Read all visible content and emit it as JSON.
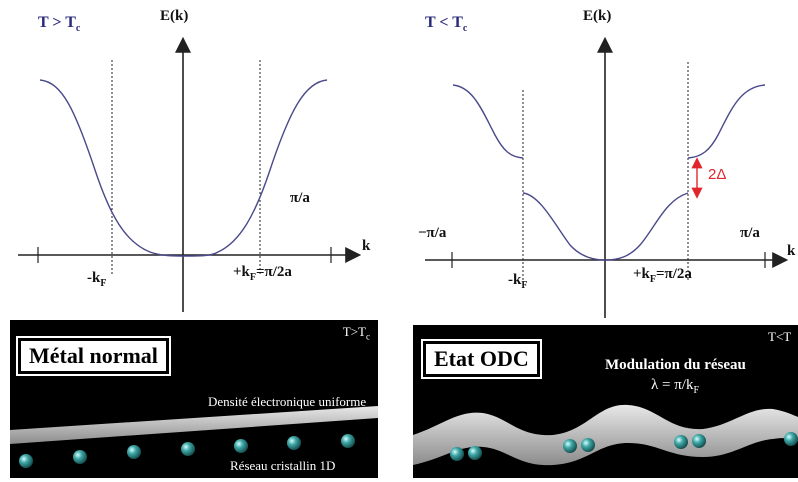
{
  "left": {
    "temp_label": "T > T",
    "temp_sub": "c",
    "energy_axis": "E(k)",
    "k_axis": "k",
    "pi_a": "π/a",
    "neg_kf": "-k",
    "neg_kf_sub": "F",
    "pos_kf": "+k",
    "pos_kf_sub": "F",
    "pos_kf_rest": "=π/2a",
    "panel": {
      "title": "Métal normal",
      "corner": "T>T",
      "corner_sub": "c",
      "density_label": "Densité électronique uniforme",
      "lattice_label": "Réseau cristallin 1D"
    }
  },
  "right": {
    "temp_label": "T < T",
    "temp_sub": "c",
    "energy_axis": "E(k)",
    "k_axis": "k",
    "neg_pi_a": "−π/a",
    "pi_a": "π/a",
    "gap": "2Δ",
    "neg_kf": "-k",
    "neg_kf_sub": "F",
    "pos_kf": "+k",
    "pos_kf_sub": "F",
    "pos_kf_rest": "=π/2a",
    "panel": {
      "title": "Etat ODC",
      "corner": "T<T",
      "modulation_label": "Modulation du réseau",
      "lambda_label": "λ = π/k",
      "lambda_sub": "F"
    }
  },
  "colors": {
    "axis": "#222222",
    "curve": "#4a4a8a",
    "gap_arrow": "#e0262d",
    "temp_label": "#2a2a7a",
    "panel_bg": "#000000",
    "atom": "#2f8f8f"
  }
}
